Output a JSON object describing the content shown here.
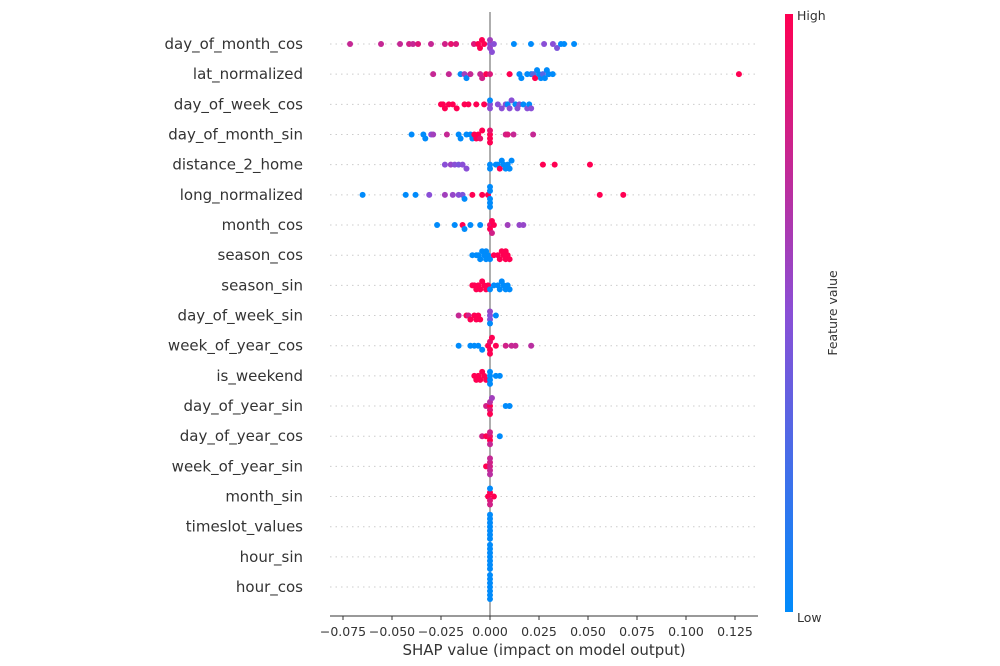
{
  "chart_data": {
    "type": "scatter",
    "subtype": "shap-beeswarm",
    "xlabel": "SHAP value (impact on model output)",
    "xlim": [
      -0.083,
      0.137
    ],
    "xticks": [
      "−0.075",
      "−0.050",
      "−0.025",
      "0.000",
      "0.025",
      "0.050",
      "0.075",
      "0.100",
      "0.125"
    ],
    "xtick_values": [
      -0.075,
      -0.05,
      -0.025,
      0,
      0.025,
      0.05,
      0.075,
      0.1,
      0.125
    ],
    "grid": "dotted horizontal per feature",
    "colorbar": {
      "label": "Feature value",
      "high_label": "High",
      "low_label": "Low",
      "low_color": "#008bfb",
      "mid_color": "#8a4fd6",
      "high_color": "#ff0052"
    },
    "features": [
      {
        "name": "day_of_month_cos",
        "points": [
          [
            -0.0714,
            0.75
          ],
          [
            -0.0556,
            0.75
          ],
          [
            -0.0459,
            0.75
          ],
          [
            -0.0413,
            0.8
          ],
          [
            -0.0393,
            0.75
          ],
          [
            -0.0367,
            0.85
          ],
          [
            -0.0301,
            0.75
          ],
          [
            -0.023,
            0.8
          ],
          [
            -0.0199,
            0.9
          ],
          [
            -0.0173,
            0.85
          ],
          [
            -0.0082,
            0.85
          ],
          [
            -0.0061,
            1
          ],
          [
            -0.0051,
            1
          ],
          [
            -0.0041,
            1
          ],
          [
            -0.003,
            1
          ],
          [
            0,
            0.5
          ],
          [
            0,
            0.55
          ],
          [
            0,
            0.6
          ],
          [
            0.001,
            0.5
          ],
          [
            0.002,
            0.5
          ],
          [
            0.0122,
            0
          ],
          [
            0.0209,
            0
          ],
          [
            0.0276,
            0.5
          ],
          [
            0.0321,
            0.5
          ],
          [
            0.0342,
            0.45
          ],
          [
            0.0362,
            0
          ],
          [
            0.0378,
            0
          ],
          [
            0.0429,
            0
          ]
        ]
      },
      {
        "name": "lat_normalized",
        "points": [
          [
            -0.029,
            0.75
          ],
          [
            -0.021,
            0.75
          ],
          [
            -0.015,
            0
          ],
          [
            -0.013,
            0.6
          ],
          [
            -0.012,
            0
          ],
          [
            -0.01,
            0.75
          ],
          [
            -0.005,
            0.75
          ],
          [
            -0.004,
            0.8
          ],
          [
            -0.002,
            1
          ],
          [
            0,
            0.85
          ],
          [
            0.01,
            1
          ],
          [
            0.015,
            0
          ],
          [
            0.016,
            0
          ],
          [
            0.019,
            0
          ],
          [
            0.021,
            0
          ],
          [
            0.022,
            0.3
          ],
          [
            0.023,
            1
          ],
          [
            0.024,
            0
          ],
          [
            0.025,
            0
          ],
          [
            0.026,
            0
          ],
          [
            0.027,
            0.3
          ],
          [
            0.028,
            0
          ],
          [
            0.029,
            0
          ],
          [
            0.03,
            0
          ],
          [
            0.032,
            0
          ],
          [
            0.127,
            1
          ]
        ]
      },
      {
        "name": "day_of_week_cos",
        "points": [
          [
            -0.025,
            1
          ],
          [
            -0.024,
            1
          ],
          [
            -0.023,
            1
          ],
          [
            -0.021,
            1
          ],
          [
            -0.019,
            1
          ],
          [
            -0.017,
            1
          ],
          [
            -0.013,
            1
          ],
          [
            -0.011,
            1
          ],
          [
            -0.007,
            1
          ],
          [
            -0.003,
            1
          ],
          [
            0,
            0.5
          ],
          [
            0,
            0.5
          ],
          [
            0,
            0
          ],
          [
            0.004,
            0.5
          ],
          [
            0.006,
            0.5
          ],
          [
            0.008,
            0.5
          ],
          [
            0.009,
            0
          ],
          [
            0.01,
            0.5
          ],
          [
            0.011,
            0.5
          ],
          [
            0.013,
            0
          ],
          [
            0.014,
            0.5
          ],
          [
            0.015,
            0.5
          ],
          [
            0.017,
            0
          ],
          [
            0.019,
            0.5
          ],
          [
            0.02,
            0
          ],
          [
            0.021,
            0.5
          ]
        ]
      },
      {
        "name": "day_of_month_sin",
        "points": [
          [
            -0.04,
            0
          ],
          [
            -0.034,
            0
          ],
          [
            -0.033,
            0
          ],
          [
            -0.03,
            0.5
          ],
          [
            -0.029,
            0.6
          ],
          [
            -0.022,
            0.75
          ],
          [
            -0.016,
            0
          ],
          [
            -0.015,
            0
          ],
          [
            -0.012,
            0
          ],
          [
            -0.01,
            0
          ],
          [
            -0.009,
            0
          ],
          [
            -0.008,
            1
          ],
          [
            -0.007,
            1
          ],
          [
            -0.006,
            1
          ],
          [
            -0.005,
            0.9
          ],
          [
            -0.004,
            1
          ],
          [
            0,
            1
          ],
          [
            0,
            1
          ],
          [
            0,
            0.9
          ],
          [
            0,
            1
          ],
          [
            0.008,
            0.8
          ],
          [
            0.009,
            0.85
          ],
          [
            0.012,
            0.75
          ],
          [
            0.022,
            0.75
          ]
        ]
      },
      {
        "name": "distance_2_home",
        "points": [
          [
            -0.023,
            0.5
          ],
          [
            -0.02,
            0.55
          ],
          [
            -0.018,
            0.5
          ],
          [
            -0.016,
            0.45
          ],
          [
            -0.014,
            0.5
          ],
          [
            -0.012,
            0.5
          ],
          [
            0,
            0
          ],
          [
            0,
            0
          ],
          [
            0.003,
            0
          ],
          [
            0.004,
            0
          ],
          [
            0.005,
            1
          ],
          [
            0.006,
            0
          ],
          [
            0.007,
            0
          ],
          [
            0.008,
            0
          ],
          [
            0.009,
            0
          ],
          [
            0.01,
            0
          ],
          [
            0.011,
            0
          ],
          [
            0.027,
            1
          ],
          [
            0.033,
            1
          ],
          [
            0.051,
            1
          ]
        ]
      },
      {
        "name": "long_normalized",
        "points": [
          [
            -0.065,
            0
          ],
          [
            -0.043,
            0
          ],
          [
            -0.038,
            0
          ],
          [
            -0.031,
            0.5
          ],
          [
            -0.023,
            0.6
          ],
          [
            -0.019,
            0.55
          ],
          [
            -0.016,
            0.5
          ],
          [
            -0.014,
            0.45
          ],
          [
            -0.013,
            0
          ],
          [
            -0.009,
            1
          ],
          [
            -0.004,
            1
          ],
          [
            -0.001,
            1
          ],
          [
            0,
            0
          ],
          [
            0,
            0
          ],
          [
            0,
            0
          ],
          [
            0,
            0
          ],
          [
            0,
            0
          ],
          [
            0.056,
            1
          ],
          [
            0.068,
            1
          ]
        ]
      },
      {
        "name": "month_cos",
        "points": [
          [
            -0.027,
            0
          ],
          [
            -0.018,
            0
          ],
          [
            -0.014,
            1
          ],
          [
            -0.013,
            0
          ],
          [
            -0.01,
            0
          ],
          [
            -0.005,
            0
          ],
          [
            0,
            0.9
          ],
          [
            0.001,
            1
          ],
          [
            0.001,
            0.8
          ],
          [
            0.002,
            1
          ],
          [
            0,
            1
          ],
          [
            0.009,
            0.6
          ],
          [
            0.015,
            0.55
          ],
          [
            0.017,
            0.55
          ]
        ]
      },
      {
        "name": "season_cos",
        "points": [
          [
            -0.009,
            0
          ],
          [
            -0.007,
            0
          ],
          [
            -0.006,
            0
          ],
          [
            -0.005,
            0
          ],
          [
            -0.004,
            0
          ],
          [
            -0.003,
            0
          ],
          [
            -0.002,
            0
          ],
          [
            -0.001,
            0
          ],
          [
            0,
            0
          ],
          [
            -0.002,
            0
          ],
          [
            0.002,
            1
          ],
          [
            0.004,
            1
          ],
          [
            0.005,
            1
          ],
          [
            0.006,
            1
          ],
          [
            0.007,
            1
          ],
          [
            0.008,
            1
          ],
          [
            0.009,
            1
          ],
          [
            0.01,
            1
          ],
          [
            0.008,
            1
          ]
        ]
      },
      {
        "name": "season_sin",
        "points": [
          [
            -0.009,
            1
          ],
          [
            -0.008,
            1
          ],
          [
            -0.007,
            1
          ],
          [
            -0.006,
            1
          ],
          [
            -0.005,
            1
          ],
          [
            -0.004,
            1
          ],
          [
            -0.003,
            1
          ],
          [
            -0.002,
            1
          ],
          [
            -0.001,
            1
          ],
          [
            0,
            0
          ],
          [
            0.002,
            0
          ],
          [
            0.004,
            0
          ],
          [
            0.005,
            0
          ],
          [
            0.006,
            0
          ],
          [
            0.007,
            0
          ],
          [
            0.008,
            0
          ],
          [
            0.009,
            0
          ],
          [
            0.01,
            0
          ]
        ]
      },
      {
        "name": "day_of_week_sin",
        "points": [
          [
            -0.016,
            0.75
          ],
          [
            -0.012,
            1
          ],
          [
            -0.011,
            0.8
          ],
          [
            -0.01,
            1
          ],
          [
            -0.008,
            1
          ],
          [
            -0.007,
            1
          ],
          [
            -0.006,
            1
          ],
          [
            -0.005,
            1
          ],
          [
            0,
            0.5
          ],
          [
            0,
            0.45
          ],
          [
            0,
            0.55
          ],
          [
            0,
            0
          ],
          [
            0.003,
            0
          ]
        ]
      },
      {
        "name": "week_of_year_cos",
        "points": [
          [
            -0.016,
            0
          ],
          [
            -0.01,
            0
          ],
          [
            -0.008,
            0
          ],
          [
            -0.006,
            0
          ],
          [
            -0.004,
            0
          ],
          [
            -0.001,
            1
          ],
          [
            0,
            1
          ],
          [
            0,
            0.9
          ],
          [
            0,
            1
          ],
          [
            0.001,
            1
          ],
          [
            0.003,
            1
          ],
          [
            0.008,
            0.8
          ],
          [
            0.011,
            0.75
          ],
          [
            0.013,
            0.75
          ],
          [
            0.021,
            0.7
          ]
        ]
      },
      {
        "name": "is_weekend",
        "points": [
          [
            -0.008,
            1
          ],
          [
            -0.007,
            1
          ],
          [
            -0.006,
            1
          ],
          [
            -0.005,
            1
          ],
          [
            -0.004,
            1
          ],
          [
            -0.003,
            1
          ],
          [
            -0.002,
            1
          ],
          [
            0,
            0
          ],
          [
            0,
            0
          ],
          [
            0,
            0
          ],
          [
            0,
            0
          ],
          [
            0.003,
            0
          ],
          [
            0.005,
            0
          ]
        ]
      },
      {
        "name": "day_of_year_sin",
        "points": [
          [
            -0.002,
            0.8
          ],
          [
            0,
            1
          ],
          [
            0,
            0.85
          ],
          [
            0,
            0.7
          ],
          [
            0,
            1
          ],
          [
            0.001,
            0.6
          ],
          [
            0.008,
            0
          ],
          [
            0.01,
            0
          ]
        ]
      },
      {
        "name": "day_of_year_cos",
        "points": [
          [
            -0.004,
            0.8
          ],
          [
            -0.002,
            1
          ],
          [
            0,
            0.9
          ],
          [
            0,
            1
          ],
          [
            0,
            0.8
          ],
          [
            0,
            0.75
          ],
          [
            0.005,
            0
          ]
        ]
      },
      {
        "name": "week_of_year_sin",
        "points": [
          [
            -0.002,
            1
          ],
          [
            0,
            0.8
          ],
          [
            0,
            0.75
          ],
          [
            0,
            0.8
          ],
          [
            0,
            0.7
          ],
          [
            0,
            0.75
          ]
        ]
      },
      {
        "name": "month_sin",
        "points": [
          [
            -0.001,
            1
          ],
          [
            0,
            0.85
          ],
          [
            0,
            1
          ],
          [
            0,
            0.8
          ],
          [
            0.002,
            1
          ],
          [
            0,
            0
          ]
        ]
      },
      {
        "name": "timeslot_values",
        "points": [
          [
            0,
            0
          ],
          [
            0,
            0
          ],
          [
            0,
            0
          ],
          [
            0,
            0
          ],
          [
            0,
            0
          ],
          [
            0,
            0
          ],
          [
            0,
            0
          ]
        ]
      },
      {
        "name": "hour_sin",
        "points": [
          [
            0,
            0
          ],
          [
            0,
            0
          ],
          [
            0,
            0
          ],
          [
            0,
            0
          ],
          [
            0,
            0
          ],
          [
            0,
            0
          ],
          [
            0,
            0
          ]
        ]
      },
      {
        "name": "hour_cos",
        "points": [
          [
            0,
            0
          ],
          [
            0,
            0
          ],
          [
            0,
            0
          ],
          [
            0,
            0
          ],
          [
            0,
            0
          ],
          [
            0,
            0
          ],
          [
            0,
            0
          ]
        ]
      }
    ]
  }
}
